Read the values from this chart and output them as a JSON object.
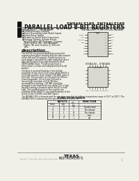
{
  "title_line1": "SN54ALS165, SN74ALS165",
  "title_line2": "PARALLEL-LOAD 8-BIT REGISTERS",
  "bg_color": "#f0efe8",
  "header_bar_color": "#111111",
  "text_color": "#111111",
  "gray_text": "#444444",
  "features": [
    "Complementary Outputs",
    "Direct Overriding Load (Data) Inputs",
    "Select these Inputs",
    "Parallel-to-Serial Data Conversion",
    "Package Options Include Plastic Small-Outline (D) Packages, Ceramic Chip Carriers (FK), and Standard Plastic (N) and Ceramic (J) 300-mil DIPs"
  ],
  "desc_para1": [
    "The SLS 65 are parallel-load 8-bit serial shift",
    "registers that when clocked shift the data toward",
    "either QA and QH outputs. Parallel access to",
    "each stage is provided by eight individual direct",
    "data (A-H) inputs from and serial/shift-clock",
    "(SER/CLKINI) input. The A(y)outs have a",
    "three state function and complemented serial",
    "outputs."
  ],
  "desc_para2": [
    "Clocking is accomplished by a low-to-high",
    "transition of the clock (CLK) input while SH/LD is",
    "held high and the clock inhibit (CLK INH) input is",
    "held low. The functions of CLK and CLK INH are",
    "interchangeable. Since it has CLK and is",
    "low-to-high transition of CLK INH also",
    "accomplishes clocking. CLK INH should be",
    "changed to the high level only while CLK is high.",
    "Parallel loading is initiated when SH/LD is held",
    "high. The parallel inputs to the register are",
    "available while SH/LD is low independently of the",
    "levels of the CLK INH, and SER inputs."
  ],
  "temp_note1": "The SN54ALS 165 is characterized for operation over the full military temperature range of -55°C to 125°C. The",
  "temp_note2": "SN74ALS 165 is characterized for operation from 0°C to 70°C.",
  "table_title": "FUNCTION TABLE",
  "table_rows": [
    [
      "L",
      "X",
      "X",
      "Parallel load"
    ],
    [
      "H",
      "H",
      "L",
      "No change"
    ],
    [
      "H",
      "L",
      "H",
      "No change"
    ],
    [
      "H",
      "↓",
      "X",
      "shift"
    ],
    [
      "H",
      "X",
      "↓",
      "QH'"
    ]
  ],
  "ic1_pins_left": [
    "SH/LD",
    "CLK",
    "CLK INH",
    "SER",
    "A",
    "B",
    "C",
    "D"
  ],
  "ic1_pins_right": [
    "QH",
    "GND",
    "QH'",
    "H",
    "G",
    "F",
    "E",
    "VCC"
  ],
  "ic2_pins_top": [
    "NC",
    "SH/LD",
    "CLK",
    "CLK INH",
    "SER",
    "A",
    "B"
  ],
  "ic2_pins_right": [
    "C",
    "D",
    "GND",
    "E",
    "F",
    "G",
    "H"
  ],
  "ic2_pins_bottom": [
    "QH",
    "QH'",
    "VCC",
    "NC"
  ],
  "ic2_pins_left": [
    "NC",
    "NC",
    "NC",
    "NC"
  ]
}
